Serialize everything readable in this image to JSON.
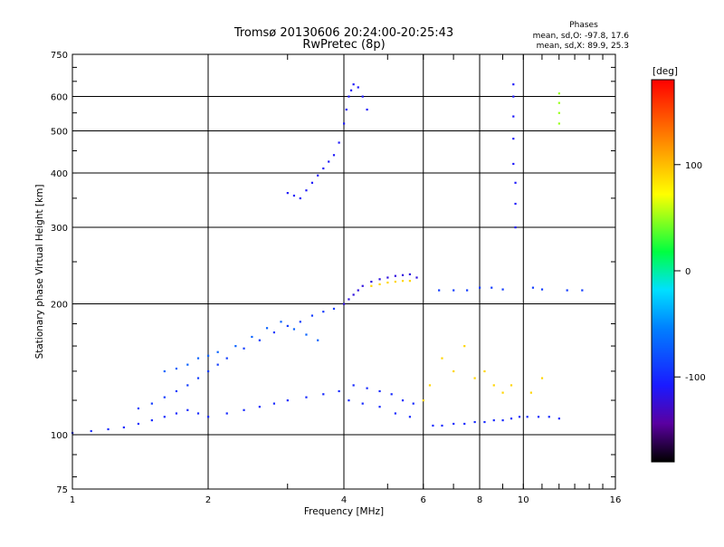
{
  "chart_data": {
    "type": "scatter",
    "title": "Tromsø 20130606 20:24:00-20:25:43",
    "subtitle": "RwPretec (8p)",
    "phases_stats": {
      "header": "Phases",
      "line1": "mean, sd,O: -97.8, 17.6",
      "line2": "mean, sd,X: 89.9, 25.3"
    },
    "xlabel": "Frequency [MHz]",
    "ylabel": "Stationary phase Virtual Height [km]",
    "x_scale": "log",
    "y_scale": "log",
    "xlim": [
      1,
      16
    ],
    "ylim": [
      75,
      750
    ],
    "x_ticks": [
      1,
      2,
      4,
      6,
      8,
      10,
      16
    ],
    "x_tick_labels": [
      "1",
      "2",
      "4",
      "6",
      "8",
      "10",
      "16"
    ],
    "y_ticks": [
      75,
      100,
      200,
      300,
      400,
      500,
      600,
      750
    ],
    "y_tick_labels": [
      "75",
      "100",
      "200",
      "300",
      "400",
      "500",
      "600",
      "750"
    ],
    "grid": true,
    "colorbar": {
      "label": "[deg]",
      "range": [
        -180,
        180
      ],
      "ticks": [
        100,
        0,
        -100
      ],
      "tick_labels": [
        "100",
        "0",
        "-100"
      ]
    },
    "series": [
      {
        "points": [
          [
            1.0,
            101
          ],
          [
            1.1,
            102
          ],
          [
            1.2,
            103
          ],
          [
            1.3,
            104
          ],
          [
            1.4,
            106
          ],
          [
            1.5,
            108
          ],
          [
            1.6,
            110
          ],
          [
            1.7,
            112
          ],
          [
            1.8,
            114
          ],
          [
            1.9,
            112
          ],
          [
            2.0,
            110
          ],
          [
            2.2,
            112
          ],
          [
            2.4,
            114
          ],
          [
            2.6,
            116
          ],
          [
            2.8,
            118
          ],
          [
            3.0,
            120
          ],
          [
            3.3,
            122
          ],
          [
            3.6,
            124
          ],
          [
            3.9,
            126
          ],
          [
            4.1,
            120
          ],
          [
            4.4,
            118
          ],
          [
            4.8,
            116
          ],
          [
            5.2,
            112
          ],
          [
            5.6,
            110
          ]
        ],
        "phase": -100
      },
      {
        "points": [
          [
            1.4,
            115
          ],
          [
            1.5,
            118
          ],
          [
            1.6,
            122
          ],
          [
            1.7,
            126
          ],
          [
            1.8,
            130
          ],
          [
            1.9,
            135
          ],
          [
            2.0,
            140
          ],
          [
            2.1,
            145
          ],
          [
            2.2,
            150
          ],
          [
            2.4,
            158
          ],
          [
            2.6,
            165
          ],
          [
            2.8,
            172
          ],
          [
            3.0,
            178
          ],
          [
            3.2,
            182
          ],
          [
            3.4,
            188
          ],
          [
            3.6,
            192
          ],
          [
            3.8,
            195
          ]
        ],
        "phase": -90
      },
      {
        "points": [
          [
            1.6,
            140
          ],
          [
            1.7,
            142
          ],
          [
            1.8,
            145
          ],
          [
            1.9,
            150
          ],
          [
            2.0,
            152
          ],
          [
            2.1,
            155
          ],
          [
            2.3,
            160
          ],
          [
            2.5,
            168
          ],
          [
            2.7,
            176
          ],
          [
            2.9,
            182
          ],
          [
            3.1,
            175
          ],
          [
            3.3,
            170
          ],
          [
            3.5,
            165
          ]
        ],
        "phase": -70
      },
      {
        "points": [
          [
            3.0,
            360
          ],
          [
            3.1,
            355
          ],
          [
            3.2,
            350
          ],
          [
            3.3,
            365
          ],
          [
            3.4,
            380
          ],
          [
            3.5,
            395
          ],
          [
            3.6,
            410
          ],
          [
            3.7,
            425
          ],
          [
            3.8,
            440
          ],
          [
            3.9,
            470
          ],
          [
            4.0,
            520
          ],
          [
            4.05,
            560
          ],
          [
            4.1,
            600
          ],
          [
            4.15,
            620
          ],
          [
            4.2,
            640
          ],
          [
            4.3,
            630
          ],
          [
            4.4,
            600
          ],
          [
            4.5,
            560
          ]
        ],
        "phase": -110
      },
      {
        "points": [
          [
            4.0,
            200
          ],
          [
            4.1,
            205
          ],
          [
            4.2,
            210
          ],
          [
            4.3,
            215
          ],
          [
            4.4,
            220
          ],
          [
            4.6,
            225
          ],
          [
            4.8,
            228
          ],
          [
            5.0,
            230
          ],
          [
            5.2,
            232
          ],
          [
            5.4,
            233
          ],
          [
            5.6,
            234
          ],
          [
            5.8,
            230
          ]
        ],
        "phase": -120
      },
      {
        "points": [
          [
            4.6,
            220
          ],
          [
            4.8,
            222
          ],
          [
            5.0,
            224
          ],
          [
            5.2,
            225
          ],
          [
            5.4,
            226
          ],
          [
            5.6,
            226
          ]
        ],
        "phase": 90
      },
      {
        "points": [
          [
            4.2,
            130
          ],
          [
            4.5,
            128
          ],
          [
            4.8,
            126
          ],
          [
            5.1,
            124
          ],
          [
            5.4,
            120
          ],
          [
            5.7,
            118
          ]
        ],
        "phase": -100
      },
      {
        "points": [
          [
            6.3,
            105
          ],
          [
            6.6,
            105
          ],
          [
            7.0,
            106
          ],
          [
            7.4,
            106
          ],
          [
            7.8,
            107
          ],
          [
            8.2,
            107
          ],
          [
            8.6,
            108
          ],
          [
            9.0,
            108
          ],
          [
            9.4,
            109
          ],
          [
            9.8,
            110
          ],
          [
            10.2,
            110
          ],
          [
            10.8,
            110
          ],
          [
            11.4,
            110
          ],
          [
            12.0,
            109
          ]
        ],
        "phase": -100
      },
      {
        "points": [
          [
            6.5,
            215
          ],
          [
            7.0,
            215
          ],
          [
            7.5,
            215
          ],
          [
            8.0,
            218
          ],
          [
            8.5,
            218
          ],
          [
            9.0,
            216
          ],
          [
            10.5,
            218
          ],
          [
            11.0,
            216
          ],
          [
            12.5,
            215
          ],
          [
            13.5,
            215
          ]
        ],
        "phase": -90
      },
      {
        "points": [
          [
            9.5,
            640
          ],
          [
            9.5,
            600
          ],
          [
            9.5,
            540
          ],
          [
            9.5,
            480
          ],
          [
            9.5,
            420
          ],
          [
            9.6,
            380
          ],
          [
            9.6,
            340
          ],
          [
            9.6,
            300
          ]
        ],
        "phase": -110
      },
      {
        "points": [
          [
            6.0,
            120
          ],
          [
            6.2,
            130
          ],
          [
            6.6,
            150
          ],
          [
            7.0,
            140
          ],
          [
            7.4,
            160
          ],
          [
            7.8,
            135
          ],
          [
            8.2,
            140
          ],
          [
            8.6,
            130
          ],
          [
            9.0,
            125
          ],
          [
            9.4,
            130
          ],
          [
            10.4,
            125
          ],
          [
            11.0,
            135
          ]
        ],
        "phase": 90
      },
      {
        "points": [
          [
            12.0,
            610
          ],
          [
            12.0,
            580
          ],
          [
            12.0,
            550
          ],
          [
            12.0,
            520
          ]
        ],
        "phase": 50
      }
    ]
  }
}
